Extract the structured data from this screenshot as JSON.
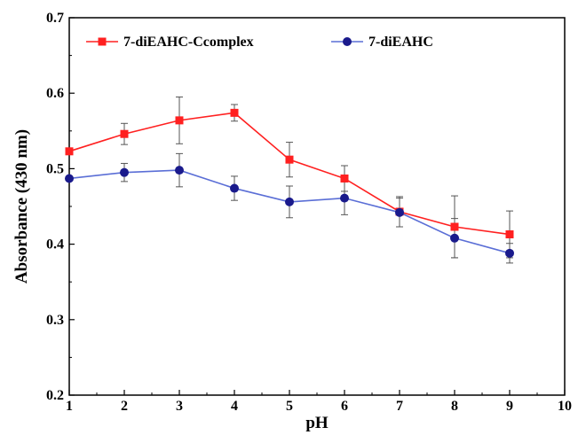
{
  "chart_data": {
    "type": "line",
    "xlabel": "pH",
    "ylabel": "Absorbance (430 nm)",
    "xlim": [
      1,
      10
    ],
    "ylim": [
      0.2,
      0.7
    ],
    "x_ticks": [
      1,
      2,
      3,
      4,
      5,
      6,
      7,
      8,
      9,
      10
    ],
    "y_ticks": [
      0.2,
      0.3,
      0.4,
      0.5,
      0.6,
      0.7
    ],
    "grid": false,
    "legend_position": "top-left",
    "series": [
      {
        "name": "7-diEAHC-Ccomplex",
        "color": "#ff2020",
        "marker": "square",
        "x": [
          1,
          2,
          3,
          4,
          5,
          6,
          7,
          8,
          9
        ],
        "y": [
          0.523,
          0.546,
          0.564,
          0.574,
          0.512,
          0.487,
          0.443,
          0.423,
          0.413
        ],
        "error": [
          0.0,
          0.014,
          0.031,
          0.011,
          0.023,
          0.017,
          0.02,
          0.041,
          0.031
        ]
      },
      {
        "name": "7-diEAHC",
        "color": "#1a1a8c",
        "line_color": "#5a6ed6",
        "marker": "circle",
        "x": [
          1,
          2,
          3,
          4,
          5,
          6,
          7,
          8,
          9
        ],
        "y": [
          0.487,
          0.495,
          0.498,
          0.474,
          0.456,
          0.461,
          0.442,
          0.408,
          0.388
        ],
        "error": [
          0.0,
          0.012,
          0.022,
          0.016,
          0.021,
          0.022,
          0.019,
          0.026,
          0.013
        ]
      }
    ]
  }
}
